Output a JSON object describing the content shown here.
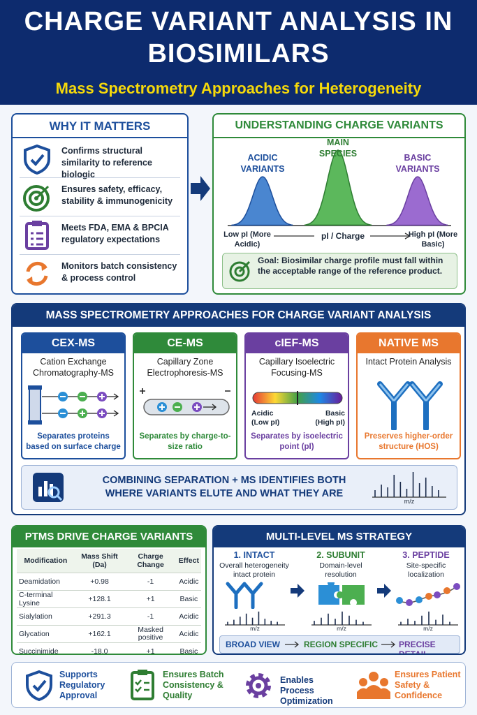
{
  "header": {
    "title": "CHARGE VARIANT ANALYSIS IN BIOSIMILARS",
    "subtitle": "Mass Spectrometry Approaches for Heterogeneity"
  },
  "why": {
    "title": "WHY IT MATTERS",
    "items": [
      "Confirms structural similarity to reference biologic",
      "Ensures safety, efficacy, stability & immunogenicity",
      "Meets FDA, EMA & BPCIA regulatory expectations",
      "Monitors batch consistency & process control"
    ]
  },
  "understanding": {
    "title": "UNDERSTANDING CHARGE VARIANTS",
    "peaks": [
      "ACIDIC VARIANTS",
      "MAIN SPECIES",
      "BASIC VARIANTS"
    ],
    "axis": {
      "low": "Low pI (More Acidic)",
      "mid": "pI / Charge",
      "high": "High pI (More Basic)"
    },
    "goal": "Goal: Biosimilar charge profile must fall within the acceptable range of the reference product."
  },
  "ms": {
    "title": "MASS SPECTROMETRY APPROACHES FOR CHARGE VARIANT ANALYSIS",
    "methods": [
      {
        "name": "CEX-MS",
        "full": "Cation Exchange Chromatography-MS",
        "desc": "Separates proteins based on surface charge"
      },
      {
        "name": "CE-MS",
        "full": "Capillary Zone Electrophoresis-MS",
        "desc": "Separates by charge-to-size ratio"
      },
      {
        "name": "cIEF-MS",
        "full": "Capillary Isoelectric Focusing-MS",
        "desc": "Separates by isoelectric point (pI)"
      },
      {
        "name": "NATIVE MS",
        "full": "Intact Protein Analysis",
        "desc": "Preserves higher-order structure (HOS)"
      }
    ],
    "cief_scale": [
      "Acidic (Low pI)",
      "Basic (High pI)"
    ],
    "combine": {
      "text": "COMBINING SEPARATION + MS IDENTIFIES BOTH WHERE VARIANTS ELUTE AND WHAT THEY ARE",
      "axis": "m/z"
    }
  },
  "ptms": {
    "title": "PTMS DRIVE CHARGE VARIANTS",
    "columns": [
      "Modification",
      "Mass Shift (Da)",
      "Charge Change",
      "Effect"
    ],
    "rows": [
      [
        "Deamidation",
        "+0.98",
        "-1",
        "Acidic"
      ],
      [
        "C-terminal Lysine",
        "+128.1",
        "+1",
        "Basic"
      ],
      [
        "Sialylation",
        "+291.3",
        "-1",
        "Acidic"
      ],
      [
        "Glycation",
        "+162.1",
        "Masked positive",
        "Acidic"
      ],
      [
        "Succinimide",
        "-18.0",
        "+1",
        "Basic"
      ]
    ]
  },
  "strategy": {
    "title": "MULTI-LEVEL MS STRATEGY",
    "levels": [
      {
        "name": "1. INTACT",
        "desc": "Overall heterogeneity intact protein",
        "axis": "m/z"
      },
      {
        "name": "2. SUBUNIT",
        "desc": "Domain-level resolution",
        "axis": "m/z"
      },
      {
        "name": "3. PEPTIDE",
        "desc": "Site-specific localization",
        "axis": "m/z"
      }
    ],
    "flow": [
      "BROAD VIEW",
      "REGION SPECIFIC",
      "PRECISE DETAIL"
    ]
  },
  "footer": [
    "Supports Regulatory Approval",
    "Ensures Batch Consistency & Quality",
    "Enables Process Optimization",
    "Ensures Patient Safety & Confidence"
  ]
}
